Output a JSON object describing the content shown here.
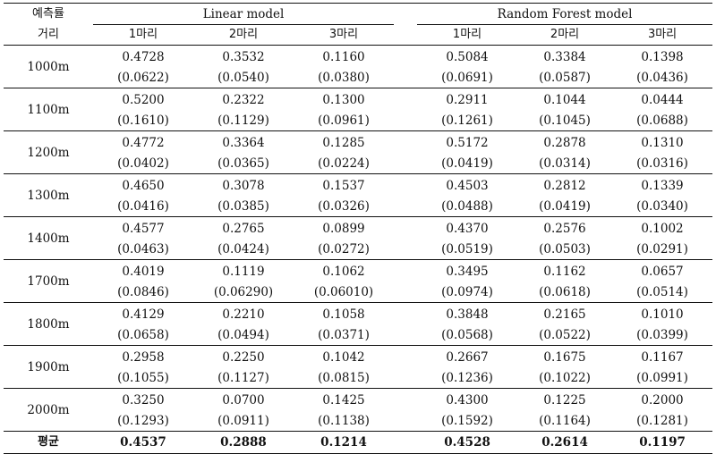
{
  "header": {
    "row_label": "예측률",
    "col_label": "거리",
    "group_linear": "Linear model",
    "group_rf": "Random Forest model",
    "cols": [
      "1마리",
      "2마리",
      "3마리"
    ]
  },
  "rows": [
    {
      "dist": "1000m",
      "lin": [
        "0.4728",
        "0.3532",
        "0.1160"
      ],
      "lin_sd": [
        "(0.0622)",
        "(0.0540)",
        "(0.0380)"
      ],
      "rf": [
        "0.5084",
        "0.3384",
        "0.1398"
      ],
      "rf_sd": [
        "(0.0691)",
        "(0.0587)",
        "(0.0436)"
      ]
    },
    {
      "dist": "1100m",
      "lin": [
        "0.5200",
        "0.2322",
        "0.1300"
      ],
      "lin_sd": [
        "(0.1610)",
        "(0.1129)",
        "(0.0961)"
      ],
      "rf": [
        "0.2911",
        "0.1044",
        "0.0444"
      ],
      "rf_sd": [
        "(0.1261)",
        "(0.1045)",
        "(0.0688)"
      ]
    },
    {
      "dist": "1200m",
      "lin": [
        "0.4772",
        "0.3364",
        "0.1285"
      ],
      "lin_sd": [
        "(0.0402)",
        "(0.0365)",
        "(0.0224)"
      ],
      "rf": [
        "0.5172",
        "0.2878",
        "0.1310"
      ],
      "rf_sd": [
        "(0.0419)",
        "(0.0314)",
        "(0.0316)"
      ]
    },
    {
      "dist": "1300m",
      "lin": [
        "0.4650",
        "0.3078",
        "0.1537"
      ],
      "lin_sd": [
        "(0.0416)",
        "(0.0385)",
        "(0.0326)"
      ],
      "rf": [
        "0.4503",
        "0.2812",
        "0.1339"
      ],
      "rf_sd": [
        "(0.0488)",
        "(0.0419)",
        "(0.0340)"
      ]
    },
    {
      "dist": "1400m",
      "lin": [
        "0.4577",
        "0.2765",
        "0.0899"
      ],
      "lin_sd": [
        "(0.0463)",
        "(0.0424)",
        "(0.0272)"
      ],
      "rf": [
        "0.4370",
        "0.2576",
        "0.1002"
      ],
      "rf_sd": [
        "(0.0519)",
        "(0.0503)",
        "(0.0291)"
      ]
    },
    {
      "dist": "1700m",
      "lin": [
        "0.4019",
        "0.1119",
        "0.1062"
      ],
      "lin_sd": [
        "(0.0846)",
        "(0.06290)",
        "(0.06010)"
      ],
      "rf": [
        "0.3495",
        "0.1162",
        "0.0657"
      ],
      "rf_sd": [
        "(0.0974)",
        "(0.0618)",
        "(0.0514)"
      ]
    },
    {
      "dist": "1800m",
      "lin": [
        "0.4129",
        "0.2210",
        "0.1058"
      ],
      "lin_sd": [
        "(0.0658)",
        "(0.0494)",
        "(0.0371)"
      ],
      "rf": [
        "0.3848",
        "0.2165",
        "0.1010"
      ],
      "rf_sd": [
        "(0.0568)",
        "(0.0522)",
        "(0.0399)"
      ]
    },
    {
      "dist": "1900m",
      "lin": [
        "0.2958",
        "0.2250",
        "0.1042"
      ],
      "lin_sd": [
        "(0.1055)",
        "(0.1127)",
        "(0.0815)"
      ],
      "rf": [
        "0.2667",
        "0.1675",
        "0.1167"
      ],
      "rf_sd": [
        "(0.1236)",
        "(0.1022)",
        "(0.0991)"
      ]
    },
    {
      "dist": "2000m",
      "lin": [
        "0.3250",
        "0.0700",
        "0.1425"
      ],
      "lin_sd": [
        "(0.1293)",
        "(0.0911)",
        "(0.1138)"
      ],
      "rf": [
        "0.4300",
        "0.1225",
        "0.2000"
      ],
      "rf_sd": [
        "(0.1592)",
        "(0.1164)",
        "(0.1281)"
      ]
    }
  ],
  "average": {
    "label": "평균",
    "lin": [
      "0.4537",
      "0.2888",
      "0.1214"
    ],
    "rf": [
      "0.4528",
      "0.2614",
      "0.1197"
    ]
  }
}
